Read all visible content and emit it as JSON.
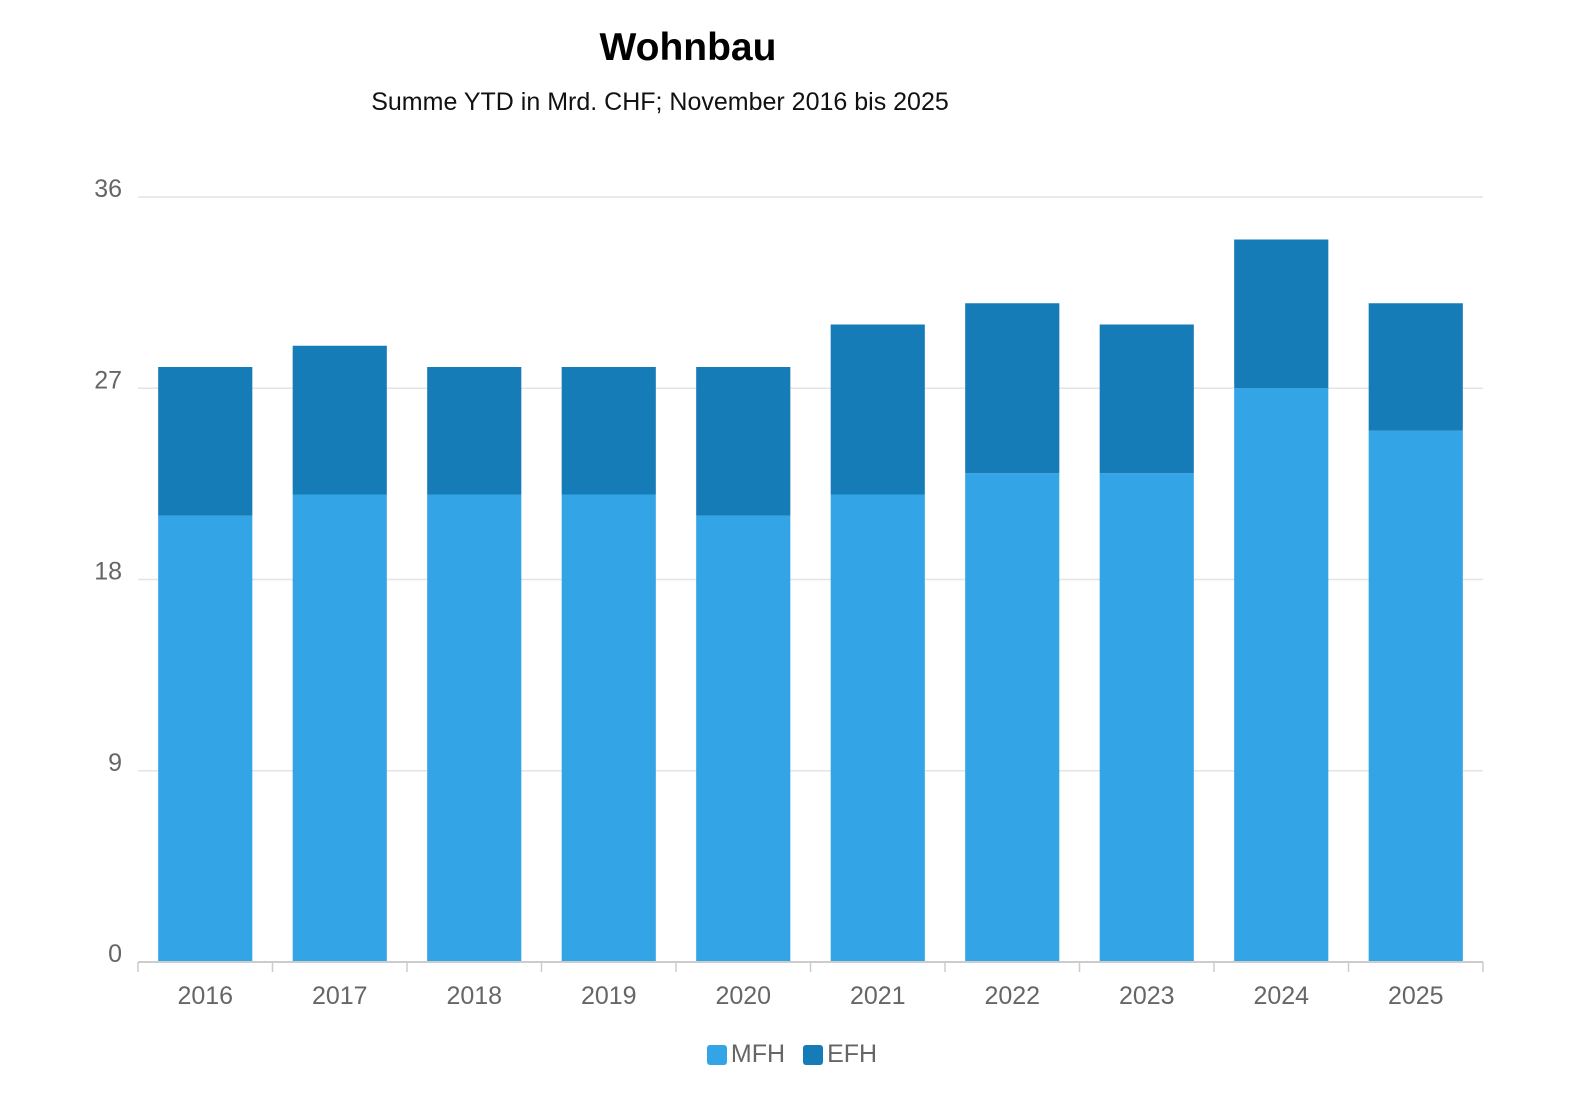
{
  "title": "Wohnbau",
  "subtitle": "Summe YTD in Mrd. CHF; November 2016 bis 2025",
  "colors": {
    "MFH": "#33a5e6",
    "EFH": "#167cb7",
    "grid": "#e4e4e4",
    "axis": "#cccccc"
  },
  "chart_data": {
    "type": "bar",
    "stacked": true,
    "categories": [
      "2016",
      "2017",
      "2018",
      "2019",
      "2020",
      "2021",
      "2022",
      "2023",
      "2024",
      "2025"
    ],
    "series": [
      {
        "name": "MFH",
        "values": [
          21,
          22,
          22,
          22,
          21,
          22,
          23,
          23,
          27,
          25
        ]
      },
      {
        "name": "EFH",
        "values": [
          7,
          7,
          6,
          6,
          7,
          8,
          8,
          7,
          7,
          6
        ]
      }
    ],
    "ylim": [
      0,
      36
    ],
    "yticks": [
      "0",
      "9",
      "18",
      "27",
      "36"
    ],
    "grid": true,
    "legend": "bottom"
  }
}
